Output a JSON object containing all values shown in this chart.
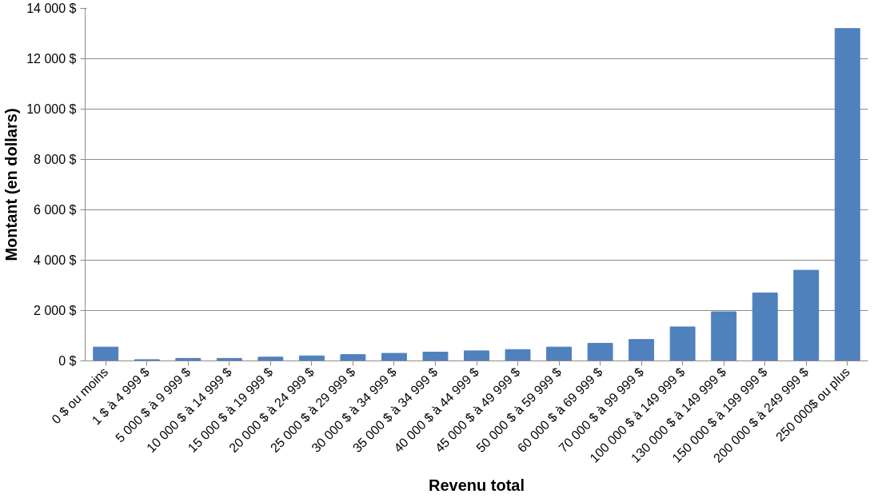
{
  "chart_data": {
    "type": "bar",
    "xlabel": "Revenu total",
    "ylabel": "Montant (en dollars)",
    "categories": [
      "0 $ ou moins",
      "1 $ à 4 999 $",
      "5 000 $ à 9 999 $",
      "10 000 $ à 14 999 $",
      "15 000 $ à 19 999 $",
      "20 000 $ à 24 999 $",
      "25 000 $ à 29 999 $",
      "30 000 $ à 34 999 $",
      "35 000 $ à 34 999 $",
      "40 000 $ à 44 999 $",
      "45 000 $ à 49 999 $",
      "50 000 $ à 59 999 $",
      "60 000 $ à 69 999 $",
      "70 000 $ à 99 999 $",
      "100 000 $ à 149 999 $",
      "130 000 $ à 149 999 $",
      "150 000 $ à 199 999 $",
      "200 000 $ à 249 999 $",
      "250 000$ ou plus"
    ],
    "values": [
      550,
      50,
      100,
      100,
      150,
      200,
      250,
      300,
      350,
      400,
      450,
      550,
      700,
      850,
      1350,
      1950,
      2700,
      3600,
      13200
    ],
    "color": "#4f81bd",
    "ylim": [
      0,
      14000
    ],
    "yticks": [
      {
        "value": 0,
        "label": "0 $"
      },
      {
        "value": 2000,
        "label": "2 000 $"
      },
      {
        "value": 4000,
        "label": "4 000 $"
      },
      {
        "value": 6000,
        "label": "6 000 $"
      },
      {
        "value": 8000,
        "label": "8 000 $"
      },
      {
        "value": 10000,
        "label": "10 000 $"
      },
      {
        "value": 12000,
        "label": "12 000 $"
      },
      {
        "value": 14000,
        "label": "14 000 $"
      }
    ],
    "grid": "y"
  }
}
